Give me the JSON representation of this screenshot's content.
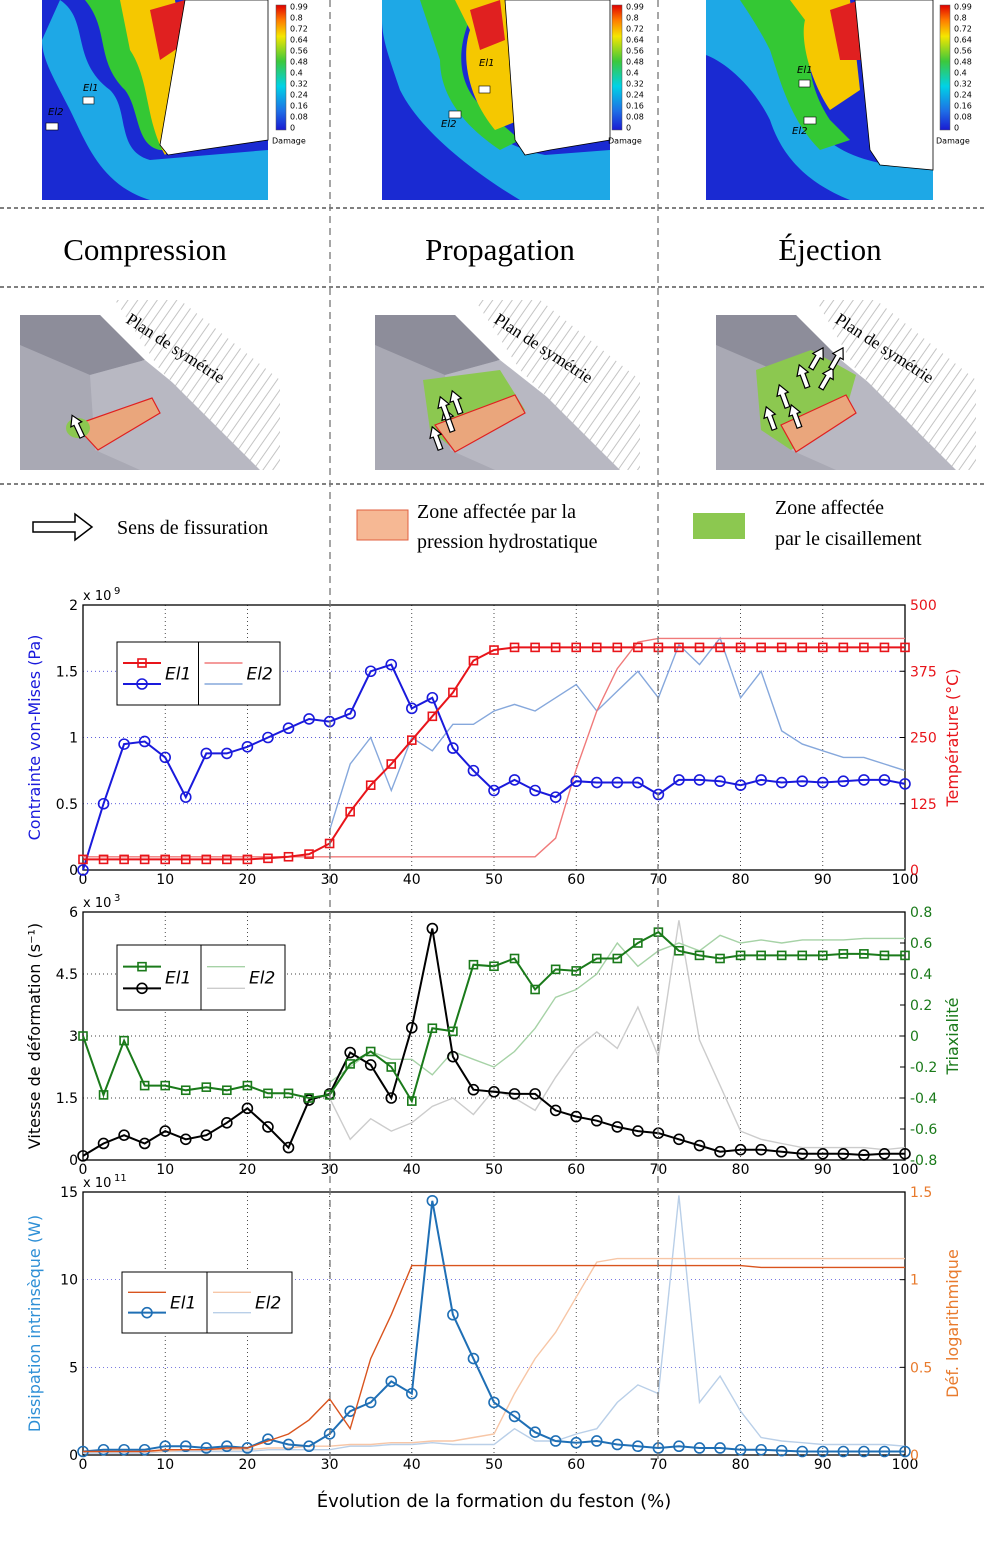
{
  "damage_maps": {
    "colorbar_ticks": [
      0.99,
      0.8,
      0.72,
      0.64,
      0.56,
      0.48,
      0.4,
      0.32,
      0.24,
      0.16,
      0.08,
      0
    ],
    "colorbar_title": "Damage",
    "panels": [
      {
        "labels": [
          "El1",
          "El2"
        ]
      },
      {
        "labels": [
          "El1",
          "El2"
        ]
      },
      {
        "labels": [
          "El1",
          "El2"
        ]
      }
    ]
  },
  "phases": [
    "Compression",
    "Propagation",
    "Éjection"
  ],
  "sketches": [
    "Plan de symétrie",
    "Plan de symétrie",
    "Plan de symétrie"
  ],
  "legend": {
    "arrow": "Sens de fissuration",
    "hydrostatic": [
      "Zone affectée par la",
      "pression hydrostatique"
    ],
    "shear": [
      "Zone affectée",
      "par le cisaillement"
    ]
  },
  "chart_data": [
    {
      "type": "line",
      "ylabel": "Contrainte von-Mises (Pa)",
      "ylabel_color": "#1a1adc",
      "y2label": "Température (°C)",
      "y2label_color": "#e8141a",
      "y_multiplier": {
        "base": "x 10",
        "exponent": "9"
      },
      "x": [
        0,
        2.5,
        5,
        7.5,
        10,
        12.5,
        15,
        17.5,
        20,
        22.5,
        25,
        27.5,
        30,
        32.5,
        35,
        37.5,
        40,
        42.5,
        45,
        47.5,
        50,
        52.5,
        55,
        57.5,
        60,
        62.5,
        65,
        67.5,
        70,
        72.5,
        75,
        77.5,
        80,
        82.5,
        85,
        87.5,
        90,
        92.5,
        95,
        97.5,
        100
      ],
      "xlim": [
        0,
        100
      ],
      "xticks": [
        0,
        10,
        20,
        30,
        40,
        50,
        60,
        70,
        80,
        90,
        100
      ],
      "ylim": [
        0,
        2
      ],
      "yticks": [
        0,
        0.5,
        1,
        1.5,
        2
      ],
      "y2lim": [
        0,
        500
      ],
      "y2ticks": [
        0,
        125,
        250,
        375,
        500
      ],
      "grid": true,
      "grid_color": "#2a2ad0",
      "series": [
        {
          "name": "El1",
          "color": "#e8141a",
          "axis": "y2",
          "marker": "square",
          "values": [
            20,
            20,
            20,
            20,
            20,
            20,
            20,
            20,
            20,
            22,
            25,
            30,
            50,
            110,
            160,
            200,
            245,
            290,
            335,
            395,
            415,
            420,
            420,
            420,
            420,
            420,
            420,
            420,
            420,
            420,
            420,
            420,
            420,
            420,
            420,
            420,
            420,
            420,
            420,
            420,
            420
          ]
        },
        {
          "name": "El1",
          "color": "#1a1adc",
          "marker": "circle",
          "values": [
            0,
            0.5,
            0.95,
            0.97,
            0.85,
            0.55,
            0.88,
            0.88,
            0.93,
            1.0,
            1.07,
            1.14,
            1.12,
            1.18,
            1.5,
            1.55,
            1.22,
            1.3,
            0.92,
            0.75,
            0.6,
            0.68,
            0.6,
            0.55,
            0.67,
            0.66,
            0.66,
            0.66,
            0.57,
            0.68,
            0.68,
            0.67,
            0.64,
            0.68,
            0.66,
            0.67,
            0.66,
            0.67,
            0.68,
            0.68,
            0.65
          ]
        },
        {
          "name": "El2",
          "color": "#f07a7a",
          "axis": "y2",
          "values": [
            25,
            25,
            25,
            25,
            25,
            25,
            25,
            25,
            25,
            25,
            25,
            25,
            25,
            25,
            25,
            25,
            25,
            25,
            25,
            25,
            25,
            25,
            25,
            60,
            190,
            300,
            380,
            430,
            437,
            437,
            437,
            437,
            437,
            437,
            437,
            437,
            437,
            437,
            437,
            437,
            437
          ]
        },
        {
          "name": "El2",
          "color": "#86a8dc",
          "values": [
            null,
            null,
            null,
            null,
            null,
            null,
            null,
            null,
            null,
            null,
            null,
            null,
            0.3,
            0.8,
            1.0,
            0.6,
            1.0,
            0.9,
            1.1,
            1.1,
            1.2,
            1.25,
            1.2,
            1.3,
            1.4,
            1.2,
            1.35,
            1.5,
            1.3,
            1.7,
            1.55,
            1.75,
            1.3,
            1.5,
            1.05,
            0.95,
            0.9,
            0.85,
            0.85,
            0.8,
            0.75
          ]
        }
      ]
    },
    {
      "type": "line",
      "ylabel": "Vitesse de déformation (s⁻¹)",
      "ylabel_color": "#000000",
      "y2label": "Triaxialité",
      "y2label_color": "#1a7a1a",
      "y_multiplier": {
        "base": "x 10",
        "exponent": "3"
      },
      "x": [
        0,
        2.5,
        5,
        7.5,
        10,
        12.5,
        15,
        17.5,
        20,
        22.5,
        25,
        27.5,
        30,
        32.5,
        35,
        37.5,
        40,
        42.5,
        45,
        47.5,
        50,
        52.5,
        55,
        57.5,
        60,
        62.5,
        65,
        67.5,
        70,
        72.5,
        75,
        77.5,
        80,
        82.5,
        85,
        87.5,
        90,
        92.5,
        95,
        97.5,
        100
      ],
      "xlim": [
        0,
        100
      ],
      "xticks": [
        0,
        10,
        20,
        30,
        40,
        50,
        60,
        70,
        80,
        90,
        100
      ],
      "ylim": [
        0,
        6
      ],
      "yticks": [
        0,
        1.5,
        3,
        4.5,
        6
      ],
      "y2lim": [
        -0.8,
        0.8
      ],
      "y2ticks": [
        -0.8,
        -0.6,
        -0.4,
        -0.2,
        0,
        0.2,
        0.4,
        0.6,
        0.8
      ],
      "grid": true,
      "grid_color": "#000000",
      "series": [
        {
          "name": "El1",
          "color": "#1a7a1a",
          "axis": "y2",
          "marker": "square",
          "values": [
            0,
            -0.38,
            -0.03,
            -0.32,
            -0.32,
            -0.35,
            -0.33,
            -0.35,
            -0.32,
            -0.37,
            -0.37,
            -0.4,
            -0.38,
            -0.18,
            -0.1,
            -0.2,
            -0.42,
            0.05,
            0.03,
            0.46,
            0.45,
            0.5,
            0.3,
            0.43,
            0.42,
            0.5,
            0.5,
            0.6,
            0.67,
            0.55,
            0.52,
            0.5,
            0.52,
            0.52,
            0.52,
            0.52,
            0.52,
            0.53,
            0.53,
            0.52,
            0.52
          ]
        },
        {
          "name": "El1",
          "color": "#000000",
          "marker": "circle",
          "values": [
            0.1,
            0.4,
            0.6,
            0.4,
            0.7,
            0.5,
            0.6,
            0.9,
            1.25,
            0.8,
            0.3,
            1.45,
            1.6,
            2.6,
            2.3,
            1.5,
            3.2,
            5.6,
            2.5,
            1.7,
            1.65,
            1.6,
            1.6,
            1.2,
            1.05,
            0.95,
            0.8,
            0.7,
            0.65,
            0.5,
            0.35,
            0.2,
            0.25,
            0.25,
            0.2,
            0.15,
            0.15,
            0.15,
            0.12,
            0.15,
            0.15
          ]
        },
        {
          "name": "El2",
          "color": "#a6d2a6",
          "axis": "y2",
          "values": [
            null,
            null,
            null,
            null,
            null,
            null,
            null,
            null,
            null,
            null,
            null,
            null,
            -0.3,
            -0.2,
            -0.1,
            -0.15,
            -0.15,
            -0.25,
            -0.1,
            -0.15,
            -0.2,
            -0.1,
            0.05,
            0.25,
            0.3,
            0.4,
            0.6,
            0.45,
            0.55,
            0.6,
            0.55,
            0.65,
            0.6,
            0.62,
            0.6,
            0.62,
            0.62,
            0.62,
            0.63,
            0.63,
            0.63
          ]
        },
        {
          "name": "El2",
          "color": "#cccccc",
          "values": [
            null,
            null,
            null,
            null,
            null,
            null,
            null,
            null,
            null,
            null,
            null,
            null,
            1.5,
            0.5,
            1.0,
            0.7,
            0.9,
            1.3,
            1.5,
            1.1,
            1.7,
            1.5,
            1.2,
            2.0,
            2.7,
            3.1,
            2.7,
            3.7,
            2.5,
            5.8,
            2.9,
            1.8,
            0.7,
            0.5,
            0.4,
            0.3,
            0.3,
            0.3,
            0.3,
            0.25,
            0.3
          ]
        }
      ]
    },
    {
      "type": "line",
      "ylabel": "Dissipation intrinsèque (W)",
      "ylabel_color": "#2e8fd6",
      "y2label": "Déf. logarithmique",
      "y2label_color": "#e87a2c",
      "y_multiplier": {
        "base": "x 10",
        "exponent": "11"
      },
      "xlabel": "Évolution de la formation du feston (%)",
      "x": [
        0,
        2.5,
        5,
        7.5,
        10,
        12.5,
        15,
        17.5,
        20,
        22.5,
        25,
        27.5,
        30,
        32.5,
        35,
        37.5,
        40,
        42.5,
        45,
        47.5,
        50,
        52.5,
        55,
        57.5,
        60,
        62.5,
        65,
        67.5,
        70,
        72.5,
        75,
        77.5,
        80,
        82.5,
        85,
        87.5,
        90,
        92.5,
        95,
        97.5,
        100
      ],
      "xlim": [
        0,
        100
      ],
      "xticks": [
        0,
        10,
        20,
        30,
        40,
        50,
        60,
        70,
        80,
        90,
        100
      ],
      "ylim": [
        0,
        15
      ],
      "yticks": [
        0,
        5,
        10,
        15
      ],
      "y2lim": [
        0,
        1.5
      ],
      "y2ticks": [
        0,
        0.5,
        1,
        1.5
      ],
      "grid": true,
      "grid_color": "#2a2ad0",
      "series": [
        {
          "name": "El1",
          "color": "#d9541e",
          "axis": "y2",
          "values": [
            0.02,
            0.02,
            0.02,
            0.02,
            0.03,
            0.03,
            0.03,
            0.04,
            0.04,
            0.08,
            0.12,
            0.2,
            0.32,
            0.15,
            0.55,
            0.8,
            1.08,
            1.08,
            1.08,
            1.08,
            1.08,
            1.08,
            1.08,
            1.08,
            1.08,
            1.08,
            1.08,
            1.08,
            1.08,
            1.08,
            1.08,
            1.08,
            1.08,
            1.07,
            1.07,
            1.07,
            1.07,
            1.07,
            1.07,
            1.07,
            1.07
          ]
        },
        {
          "name": "El1",
          "color": "#1f6fb5",
          "marker": "circle",
          "values": [
            0.2,
            0.3,
            0.3,
            0.3,
            0.5,
            0.5,
            0.4,
            0.5,
            0.4,
            0.9,
            0.6,
            0.5,
            1.2,
            2.5,
            3.0,
            4.2,
            3.5,
            14.5,
            8,
            5.5,
            3.0,
            2.2,
            1.3,
            0.8,
            0.7,
            0.8,
            0.6,
            0.5,
            0.4,
            0.5,
            0.4,
            0.4,
            0.3,
            0.3,
            0.25,
            0.2,
            0.2,
            0.2,
            0.2,
            0.2,
            0.2
          ]
        },
        {
          "name": "El2",
          "color": "#f7c6a6",
          "axis": "y2",
          "values": [
            0.02,
            0.02,
            0.02,
            0.02,
            0.02,
            0.03,
            0.03,
            0.03,
            0.03,
            0.04,
            0.04,
            0.05,
            0.05,
            0.06,
            0.06,
            0.07,
            0.07,
            0.08,
            0.08,
            0.1,
            0.12,
            0.35,
            0.55,
            0.7,
            0.9,
            1.1,
            1.12,
            1.12,
            1.12,
            1.12,
            1.12,
            1.12,
            1.12,
            1.12,
            1.12,
            1.12,
            1.12,
            1.12,
            1.12,
            1.12,
            1.12
          ]
        },
        {
          "name": "El2",
          "color": "#b9cfe8",
          "values": [
            0.1,
            0.1,
            0.1,
            0.1,
            0.2,
            0.2,
            0.2,
            0.2,
            0.2,
            0.3,
            0.3,
            0.3,
            0.3,
            0.5,
            0.5,
            0.6,
            0.6,
            0.7,
            0.6,
            0.6,
            0.6,
            1.5,
            0.8,
            0.8,
            1.2,
            1.5,
            3.0,
            4.0,
            3.5,
            14.8,
            3.0,
            4.5,
            2.5,
            1.0,
            0.8,
            0.7,
            0.6,
            0.6,
            0.6,
            0.6,
            0.5
          ]
        }
      ]
    }
  ]
}
